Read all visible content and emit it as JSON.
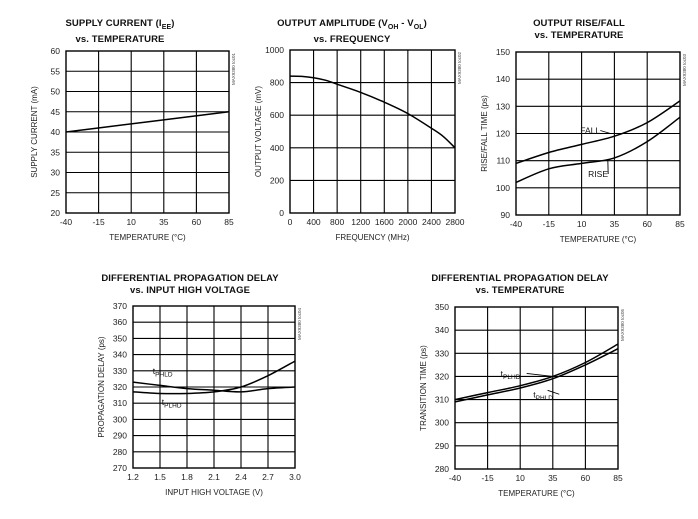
{
  "chart_data": [
    {
      "id": "c1",
      "type": "line",
      "title": [
        "SUPPLY CURRENT (I",
        "EE",
        ")",
        "vs. TEMPERATURE"
      ],
      "xlabel": "TEMPERATURE (°C)",
      "ylabel": "SUPPLY CURRENT (mA)",
      "code": "MAX9380 toc01",
      "xlim": [
        -40,
        85
      ],
      "ylim": [
        20,
        60
      ],
      "xticks": [
        "-40",
        "-15",
        "10",
        "35",
        "60",
        "85"
      ],
      "yticks": [
        "20",
        "25",
        "30",
        "35",
        "40",
        "45",
        "50",
        "55",
        "60"
      ],
      "grid": true,
      "series": [
        {
          "x": [
            -40,
            85
          ],
          "values": [
            40,
            45
          ]
        }
      ],
      "annotations": []
    },
    {
      "id": "c2",
      "type": "line",
      "title": [
        "OUTPUT AMPLITUDE (V",
        "OH",
        " - V",
        "OL",
        ")",
        "vs. FREQUENCY"
      ],
      "xlabel": "FREQUENCY (MHz)",
      "ylabel": "OUTPUT VOLTAGE (mV)",
      "code": "MAX9380 toc02",
      "xlim": [
        0,
        2800
      ],
      "ylim": [
        0,
        1000
      ],
      "xticks": [
        "0",
        "400",
        "800",
        "1200",
        "1600",
        "2000",
        "2400",
        "2800"
      ],
      "yticks": [
        "0",
        "200",
        "400",
        "600",
        "800",
        "1000"
      ],
      "grid": true,
      "series": [
        {
          "x": [
            0,
            200,
            400,
            600,
            800,
            1200,
            1600,
            2000,
            2400,
            2600,
            2800
          ],
          "values": [
            840,
            838,
            830,
            815,
            790,
            740,
            680,
            610,
            520,
            470,
            400
          ]
        }
      ],
      "annotations": []
    },
    {
      "id": "c3",
      "type": "line",
      "title": [
        "OUTPUT RISE/FALL",
        "vs. TEMPERATURE"
      ],
      "xlabel": "TEMPERATURE (°C)",
      "ylabel": "RISE/FALL TIME (ps)",
      "code": "MAX9380 toc03",
      "xlim": [
        -40,
        85
      ],
      "ylim": [
        90,
        150
      ],
      "xticks": [
        "-40",
        "-15",
        "10",
        "35",
        "60",
        "85"
      ],
      "yticks": [
        "90",
        "100",
        "110",
        "120",
        "130",
        "140",
        "150"
      ],
      "grid": true,
      "series": [
        {
          "name": "FALL",
          "x": [
            -40,
            -15,
            10,
            35,
            60,
            85
          ],
          "values": [
            109,
            113,
            116,
            119,
            124,
            132
          ]
        },
        {
          "name": "RISE",
          "x": [
            -40,
            -15,
            10,
            35,
            60,
            85
          ],
          "values": [
            102,
            107,
            109,
            111,
            117,
            126
          ]
        }
      ],
      "annotations": [
        {
          "text": "FALL",
          "x": 9,
          "y": 120,
          "lx": 32,
          "ly": 120
        },
        {
          "text": "RISE",
          "x": 15,
          "y": 104,
          "lx": 30,
          "ly": 110
        }
      ]
    },
    {
      "id": "c4",
      "type": "line",
      "title": [
        "DIFFERENTIAL PROPAGATION DELAY",
        "vs. INPUT HIGH VOLTAGE"
      ],
      "xlabel": "INPUT HIGH VOLTAGE (V)",
      "ylabel": "PROPAGATION DELAY (ps)",
      "code": "MAX9380 toc04",
      "xlim": [
        1.2,
        3.0
      ],
      "ylim": [
        270,
        370
      ],
      "xticks": [
        "1.2",
        "1.5",
        "1.8",
        "2.1",
        "2.4",
        "2.7",
        "3.0"
      ],
      "yticks": [
        "270",
        "280",
        "290",
        "300",
        "310",
        "320",
        "330",
        "340",
        "350",
        "360",
        "370"
      ],
      "grid": true,
      "series": [
        {
          "name": "tPHLD",
          "x": [
            1.2,
            1.5,
            1.8,
            2.1,
            2.4,
            2.7,
            3.0
          ],
          "values": [
            323,
            321,
            319,
            318,
            317,
            319,
            320
          ]
        },
        {
          "name": "tPLHD",
          "x": [
            1.2,
            1.5,
            1.8,
            2.1,
            2.4,
            2.7,
            3.0
          ],
          "values": [
            317,
            316,
            316,
            317,
            320,
            327,
            336
          ]
        }
      ],
      "annotations": [
        {
          "text": "t",
          "sub": "PHLD",
          "x": 1.42,
          "y": 328
        },
        {
          "text": "t",
          "sub": "PLHD",
          "x": 1.52,
          "y": 309
        }
      ]
    },
    {
      "id": "c5",
      "type": "line",
      "title": [
        "DIFFERENTIAL PROPAGATION DELAY",
        "vs. TEMPERATURE"
      ],
      "xlabel": "TEMPERATURE (°C)",
      "ylabel": "TRANSITION TIME (ps)",
      "code": "MAX9380 toc05",
      "xlim": [
        -40,
        85
      ],
      "ylim": [
        280,
        350
      ],
      "xticks": [
        "-40",
        "-15",
        "10",
        "35",
        "60",
        "85"
      ],
      "yticks": [
        "280",
        "290",
        "300",
        "310",
        "320",
        "330",
        "340",
        "350"
      ],
      "grid": true,
      "series": [
        {
          "name": "tPLHD",
          "x": [
            -40,
            -15,
            10,
            35,
            60,
            85
          ],
          "values": [
            309,
            312,
            315,
            319,
            325,
            332
          ]
        },
        {
          "name": "tPHLD",
          "x": [
            -40,
            -15,
            10,
            35,
            60,
            85
          ],
          "values": [
            310,
            313,
            316,
            320,
            326,
            334
          ]
        }
      ],
      "annotations": [
        {
          "text": "t",
          "sub": "PLHD",
          "x": -5,
          "y": 320,
          "lx": 35,
          "ly": 320
        },
        {
          "text": "t",
          "sub": "PHLD",
          "x": 20,
          "y": 311,
          "lx": 31,
          "ly": 314
        }
      ]
    }
  ]
}
